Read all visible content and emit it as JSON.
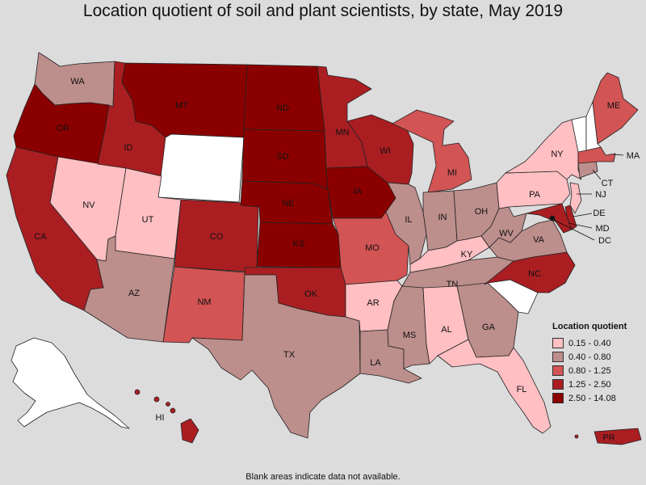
{
  "title": "Location quotient of soil and plant scientists, by state, May 2019",
  "footnote": "Blank areas indicate data not available.",
  "colors": {
    "bg": "#dcdcdc",
    "na": "#ffffff",
    "c1": "#ffbfc3",
    "c2": "#bc8e8c",
    "c3": "#d25454",
    "c4": "#aa1e22",
    "c5": "#8a0000"
  },
  "legend": {
    "title": "Location quotient",
    "items": [
      {
        "label": "0.15 - 0.40",
        "color": "#ffbfc3"
      },
      {
        "label": "0.40 - 0.80",
        "color": "#bc8e8c"
      },
      {
        "label": "0.80 - 1.25",
        "color": "#d25454"
      },
      {
        "label": "1.25 - 2.50",
        "color": "#aa1e22"
      },
      {
        "label": "2.50 - 14.08",
        "color": "#8a0000"
      }
    ]
  },
  "chart_data": {
    "type": "choropleth",
    "title": "Location quotient of soil and plant scientists, by state, May 2019",
    "legend_title": "Location quotient",
    "legend_placement": "bottom-right",
    "bins": [
      "0.15 - 0.40",
      "0.40 - 0.80",
      "0.80 - 1.25",
      "1.25 - 2.50",
      "2.50 - 14.08"
    ],
    "states": [
      {
        "code": "WA",
        "bin": "0.40 - 0.80"
      },
      {
        "code": "OR",
        "bin": "2.50 - 14.08"
      },
      {
        "code": "CA",
        "bin": "1.25 - 2.50"
      },
      {
        "code": "NV",
        "bin": "0.15 - 0.40"
      },
      {
        "code": "ID",
        "bin": "1.25 - 2.50"
      },
      {
        "code": "MT",
        "bin": "2.50 - 14.08"
      },
      {
        "code": "WY",
        "bin": "n/a"
      },
      {
        "code": "UT",
        "bin": "0.15 - 0.40"
      },
      {
        "code": "AZ",
        "bin": "0.40 - 0.80"
      },
      {
        "code": "CO",
        "bin": "1.25 - 2.50"
      },
      {
        "code": "NM",
        "bin": "0.80 - 1.25"
      },
      {
        "code": "ND",
        "bin": "2.50 - 14.08"
      },
      {
        "code": "SD",
        "bin": "2.50 - 14.08"
      },
      {
        "code": "NE",
        "bin": "2.50 - 14.08"
      },
      {
        "code": "KS",
        "bin": "2.50 - 14.08"
      },
      {
        "code": "OK",
        "bin": "1.25 - 2.50"
      },
      {
        "code": "TX",
        "bin": "0.40 - 0.80"
      },
      {
        "code": "MN",
        "bin": "1.25 - 2.50"
      },
      {
        "code": "IA",
        "bin": "2.50 - 14.08"
      },
      {
        "code": "MO",
        "bin": "0.80 - 1.25"
      },
      {
        "code": "AR",
        "bin": "0.15 - 0.40"
      },
      {
        "code": "LA",
        "bin": "0.40 - 0.80"
      },
      {
        "code": "WI",
        "bin": "1.25 - 2.50"
      },
      {
        "code": "IL",
        "bin": "0.40 - 0.80"
      },
      {
        "code": "MI",
        "bin": "0.80 - 1.25"
      },
      {
        "code": "IN",
        "bin": "0.40 - 0.80"
      },
      {
        "code": "OH",
        "bin": "0.40 - 0.80"
      },
      {
        "code": "KY",
        "bin": "0.15 - 0.40"
      },
      {
        "code": "TN",
        "bin": "0.40 - 0.80"
      },
      {
        "code": "MS",
        "bin": "0.40 - 0.80"
      },
      {
        "code": "AL",
        "bin": "0.15 - 0.40"
      },
      {
        "code": "GA",
        "bin": "0.40 - 0.80"
      },
      {
        "code": "FL",
        "bin": "0.15 - 0.40"
      },
      {
        "code": "SC",
        "bin": "n/a"
      },
      {
        "code": "NC",
        "bin": "1.25 - 2.50"
      },
      {
        "code": "VA",
        "bin": "0.40 - 0.80"
      },
      {
        "code": "WV",
        "bin": "0.40 - 0.80"
      },
      {
        "code": "PA",
        "bin": "0.15 - 0.40"
      },
      {
        "code": "NY",
        "bin": "0.15 - 0.40"
      },
      {
        "code": "MD",
        "bin": "1.25 - 2.50"
      },
      {
        "code": "DE",
        "bin": "1.25 - 2.50"
      },
      {
        "code": "DC",
        "bin": "2.50 - 14.08"
      },
      {
        "code": "NJ",
        "bin": "0.15 - 0.40"
      },
      {
        "code": "CT",
        "bin": "0.40 - 0.80"
      },
      {
        "code": "MA",
        "bin": "0.80 - 1.25"
      },
      {
        "code": "VT",
        "bin": "n/a"
      },
      {
        "code": "NH",
        "bin": "n/a"
      },
      {
        "code": "ME",
        "bin": "0.80 - 1.25"
      },
      {
        "code": "AK",
        "bin": "n/a"
      },
      {
        "code": "HI",
        "bin": "1.25 - 2.50"
      },
      {
        "code": "PR",
        "bin": "1.25 - 2.50"
      }
    ]
  }
}
